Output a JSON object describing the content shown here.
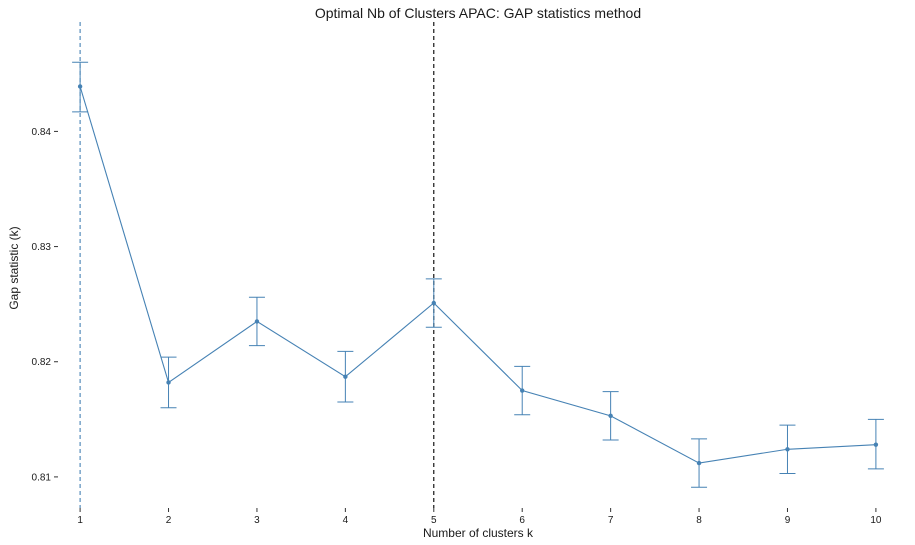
{
  "chart_data": {
    "type": "line",
    "title": "Optimal Nb of Clusters APAC: GAP statistics method",
    "xlabel": "Number of clusters k",
    "ylabel": "Gap statistic (k)",
    "x": [
      1,
      2,
      3,
      4,
      5,
      6,
      7,
      8,
      9,
      10
    ],
    "x_tick_labels": [
      "1",
      "2",
      "3",
      "4",
      "5",
      "6",
      "7",
      "8",
      "9",
      "10"
    ],
    "series": [
      {
        "values": [
          0.8439,
          0.8182,
          0.8235,
          0.8187,
          0.8251,
          0.8175,
          0.8153,
          0.8112,
          0.8124,
          0.8128
        ],
        "error_lower": [
          0.8417,
          0.816,
          0.8214,
          0.8165,
          0.823,
          0.8154,
          0.8132,
          0.8091,
          0.8103,
          0.8107
        ],
        "error_upper": [
          0.846,
          0.8204,
          0.8256,
          0.8209,
          0.8272,
          0.8196,
          0.8174,
          0.8133,
          0.8145,
          0.815
        ],
        "color": "#4682B4"
      }
    ],
    "y_ticks": [
      0.81,
      0.82,
      0.83,
      0.84
    ],
    "y_tick_labels": [
      "0.81",
      "0.82",
      "0.83",
      "0.84"
    ],
    "ylim": [
      0.8073,
      0.8495
    ],
    "xlim": [
      0.75,
      10.25
    ],
    "vlines": [
      {
        "x": 1,
        "color": "#4682B4",
        "style": "dashed"
      },
      {
        "x": 5,
        "color": "#000000",
        "style": "dashed"
      }
    ],
    "grid": false,
    "legend": "none"
  }
}
